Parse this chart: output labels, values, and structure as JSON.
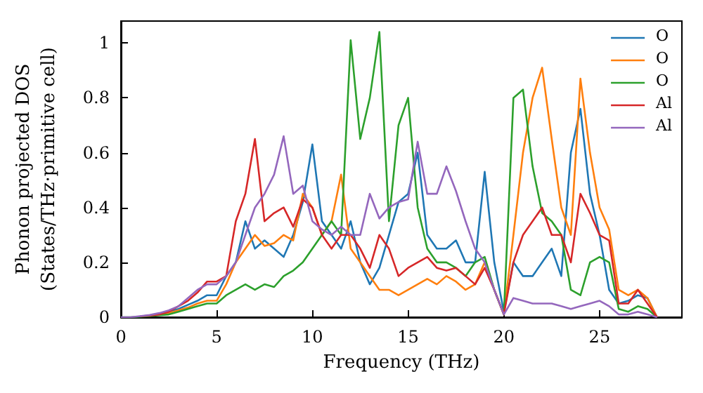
{
  "chart_data": {
    "type": "line",
    "xlabel": "Frequency (THz)",
    "ylabel": "Phonon projected DOS\n(States/THz·primitive cell)",
    "x": [
      0,
      0.5,
      1,
      1.5,
      2,
      2.5,
      3,
      3.5,
      4,
      4.5,
      5,
      5.5,
      6,
      6.5,
      7,
      7.5,
      8,
      8.5,
      9,
      9.5,
      10,
      10.5,
      11,
      11.5,
      12,
      12.5,
      13,
      13.5,
      14,
      14.5,
      15,
      15.5,
      16,
      16.5,
      17,
      17.5,
      18,
      18.5,
      19,
      19.5,
      20,
      20.5,
      21,
      21.5,
      22,
      22.5,
      23,
      23.5,
      24,
      24.5,
      25,
      25.5,
      26,
      26.5,
      27,
      27.5,
      28
    ],
    "xlim": [
      0,
      29.3
    ],
    "xticks": [
      0,
      5,
      10,
      15,
      20,
      25
    ],
    "ylim": [
      0,
      1.08
    ],
    "yticks": [
      0,
      0.2,
      0.4,
      0.6,
      0.8,
      1.0
    ],
    "legend": "top right",
    "grid": false,
    "series": [
      {
        "name": "O",
        "color": "#1f77b4",
        "values": [
          null,
          null,
          null,
          null,
          0.01,
          0.02,
          0.03,
          0.045,
          0.06,
          0.08,
          0.08,
          0.15,
          0.2,
          0.35,
          0.25,
          0.28,
          0.25,
          0.22,
          0.3,
          0.42,
          0.63,
          0.35,
          0.3,
          0.25,
          0.35,
          0.2,
          0.12,
          0.18,
          0.3,
          0.42,
          0.45,
          0.6,
          0.3,
          0.25,
          0.25,
          0.28,
          0.2,
          0.2,
          0.53,
          0.2,
          0.02,
          0.2,
          0.15,
          0.15,
          0.2,
          0.25,
          0.15,
          0.6,
          0.76,
          0.45,
          0.3,
          0.1,
          0.05,
          0.06,
          0.08,
          0.07,
          0
        ]
      },
      {
        "name": "O",
        "color": "#ff7f0e",
        "values": [
          null,
          null,
          null,
          0.005,
          0.01,
          0.015,
          0.025,
          0.035,
          0.05,
          0.06,
          0.06,
          0.12,
          0.2,
          0.25,
          0.3,
          0.26,
          0.27,
          0.3,
          0.28,
          0.45,
          0.4,
          0.3,
          0.35,
          0.52,
          0.25,
          0.2,
          0.15,
          0.1,
          0.1,
          0.08,
          0.1,
          0.12,
          0.14,
          0.12,
          0.15,
          0.13,
          0.1,
          0.12,
          0.2,
          0.1,
          0.01,
          0.3,
          0.6,
          0.8,
          0.91,
          0.65,
          0.4,
          0.3,
          0.87,
          0.6,
          0.4,
          0.32,
          0.1,
          0.08,
          0.1,
          0.07,
          0
        ]
      },
      {
        "name": "O",
        "color": "#2ca02c",
        "values": [
          0,
          0,
          0.002,
          0.004,
          0.007,
          0.01,
          0.02,
          0.03,
          0.04,
          0.05,
          0.05,
          0.08,
          0.1,
          0.12,
          0.1,
          0.12,
          0.11,
          0.15,
          0.17,
          0.2,
          0.25,
          0.3,
          0.35,
          0.3,
          1.01,
          0.65,
          0.8,
          1.04,
          0.35,
          0.7,
          0.8,
          0.4,
          0.25,
          0.2,
          0.2,
          0.18,
          0.15,
          0.2,
          0.22,
          0.1,
          0.01,
          0.8,
          0.83,
          0.55,
          0.38,
          0.35,
          0.3,
          0.1,
          0.08,
          0.2,
          0.22,
          0.2,
          0.03,
          0.02,
          0.04,
          0.03,
          0
        ]
      },
      {
        "name": "Al",
        "color": "#d62728",
        "values": [
          null,
          null,
          0.003,
          0.006,
          0.01,
          0.02,
          0.04,
          0.06,
          0.09,
          0.13,
          0.13,
          0.15,
          0.35,
          0.45,
          0.65,
          0.35,
          0.38,
          0.4,
          0.33,
          0.43,
          0.4,
          0.3,
          0.25,
          0.3,
          0.3,
          0.25,
          0.18,
          0.3,
          0.25,
          0.15,
          0.18,
          0.2,
          0.22,
          0.18,
          0.17,
          0.18,
          0.15,
          0.12,
          0.18,
          0.1,
          0.01,
          0.2,
          0.3,
          0.35,
          0.4,
          0.3,
          0.3,
          0.2,
          0.45,
          0.38,
          0.3,
          0.28,
          0.05,
          0.05,
          0.1,
          0.05,
          0
        ]
      },
      {
        "name": "Al",
        "color": "#9467bd",
        "values": [
          0,
          0,
          0.004,
          0.008,
          0.015,
          0.025,
          0.04,
          0.07,
          0.1,
          0.12,
          0.12,
          0.15,
          0.2,
          0.3,
          0.4,
          0.45,
          0.52,
          0.66,
          0.45,
          0.48,
          0.35,
          0.32,
          0.3,
          0.33,
          0.3,
          0.3,
          0.45,
          0.36,
          0.4,
          0.42,
          0.43,
          0.64,
          0.45,
          0.45,
          0.55,
          0.46,
          0.35,
          0.25,
          0.2,
          0.1,
          0.01,
          0.07,
          0.06,
          0.05,
          0.05,
          0.05,
          0.04,
          0.03,
          0.04,
          0.05,
          0.06,
          0.04,
          0.01,
          0.01,
          0.02,
          0.01,
          0
        ]
      }
    ]
  }
}
